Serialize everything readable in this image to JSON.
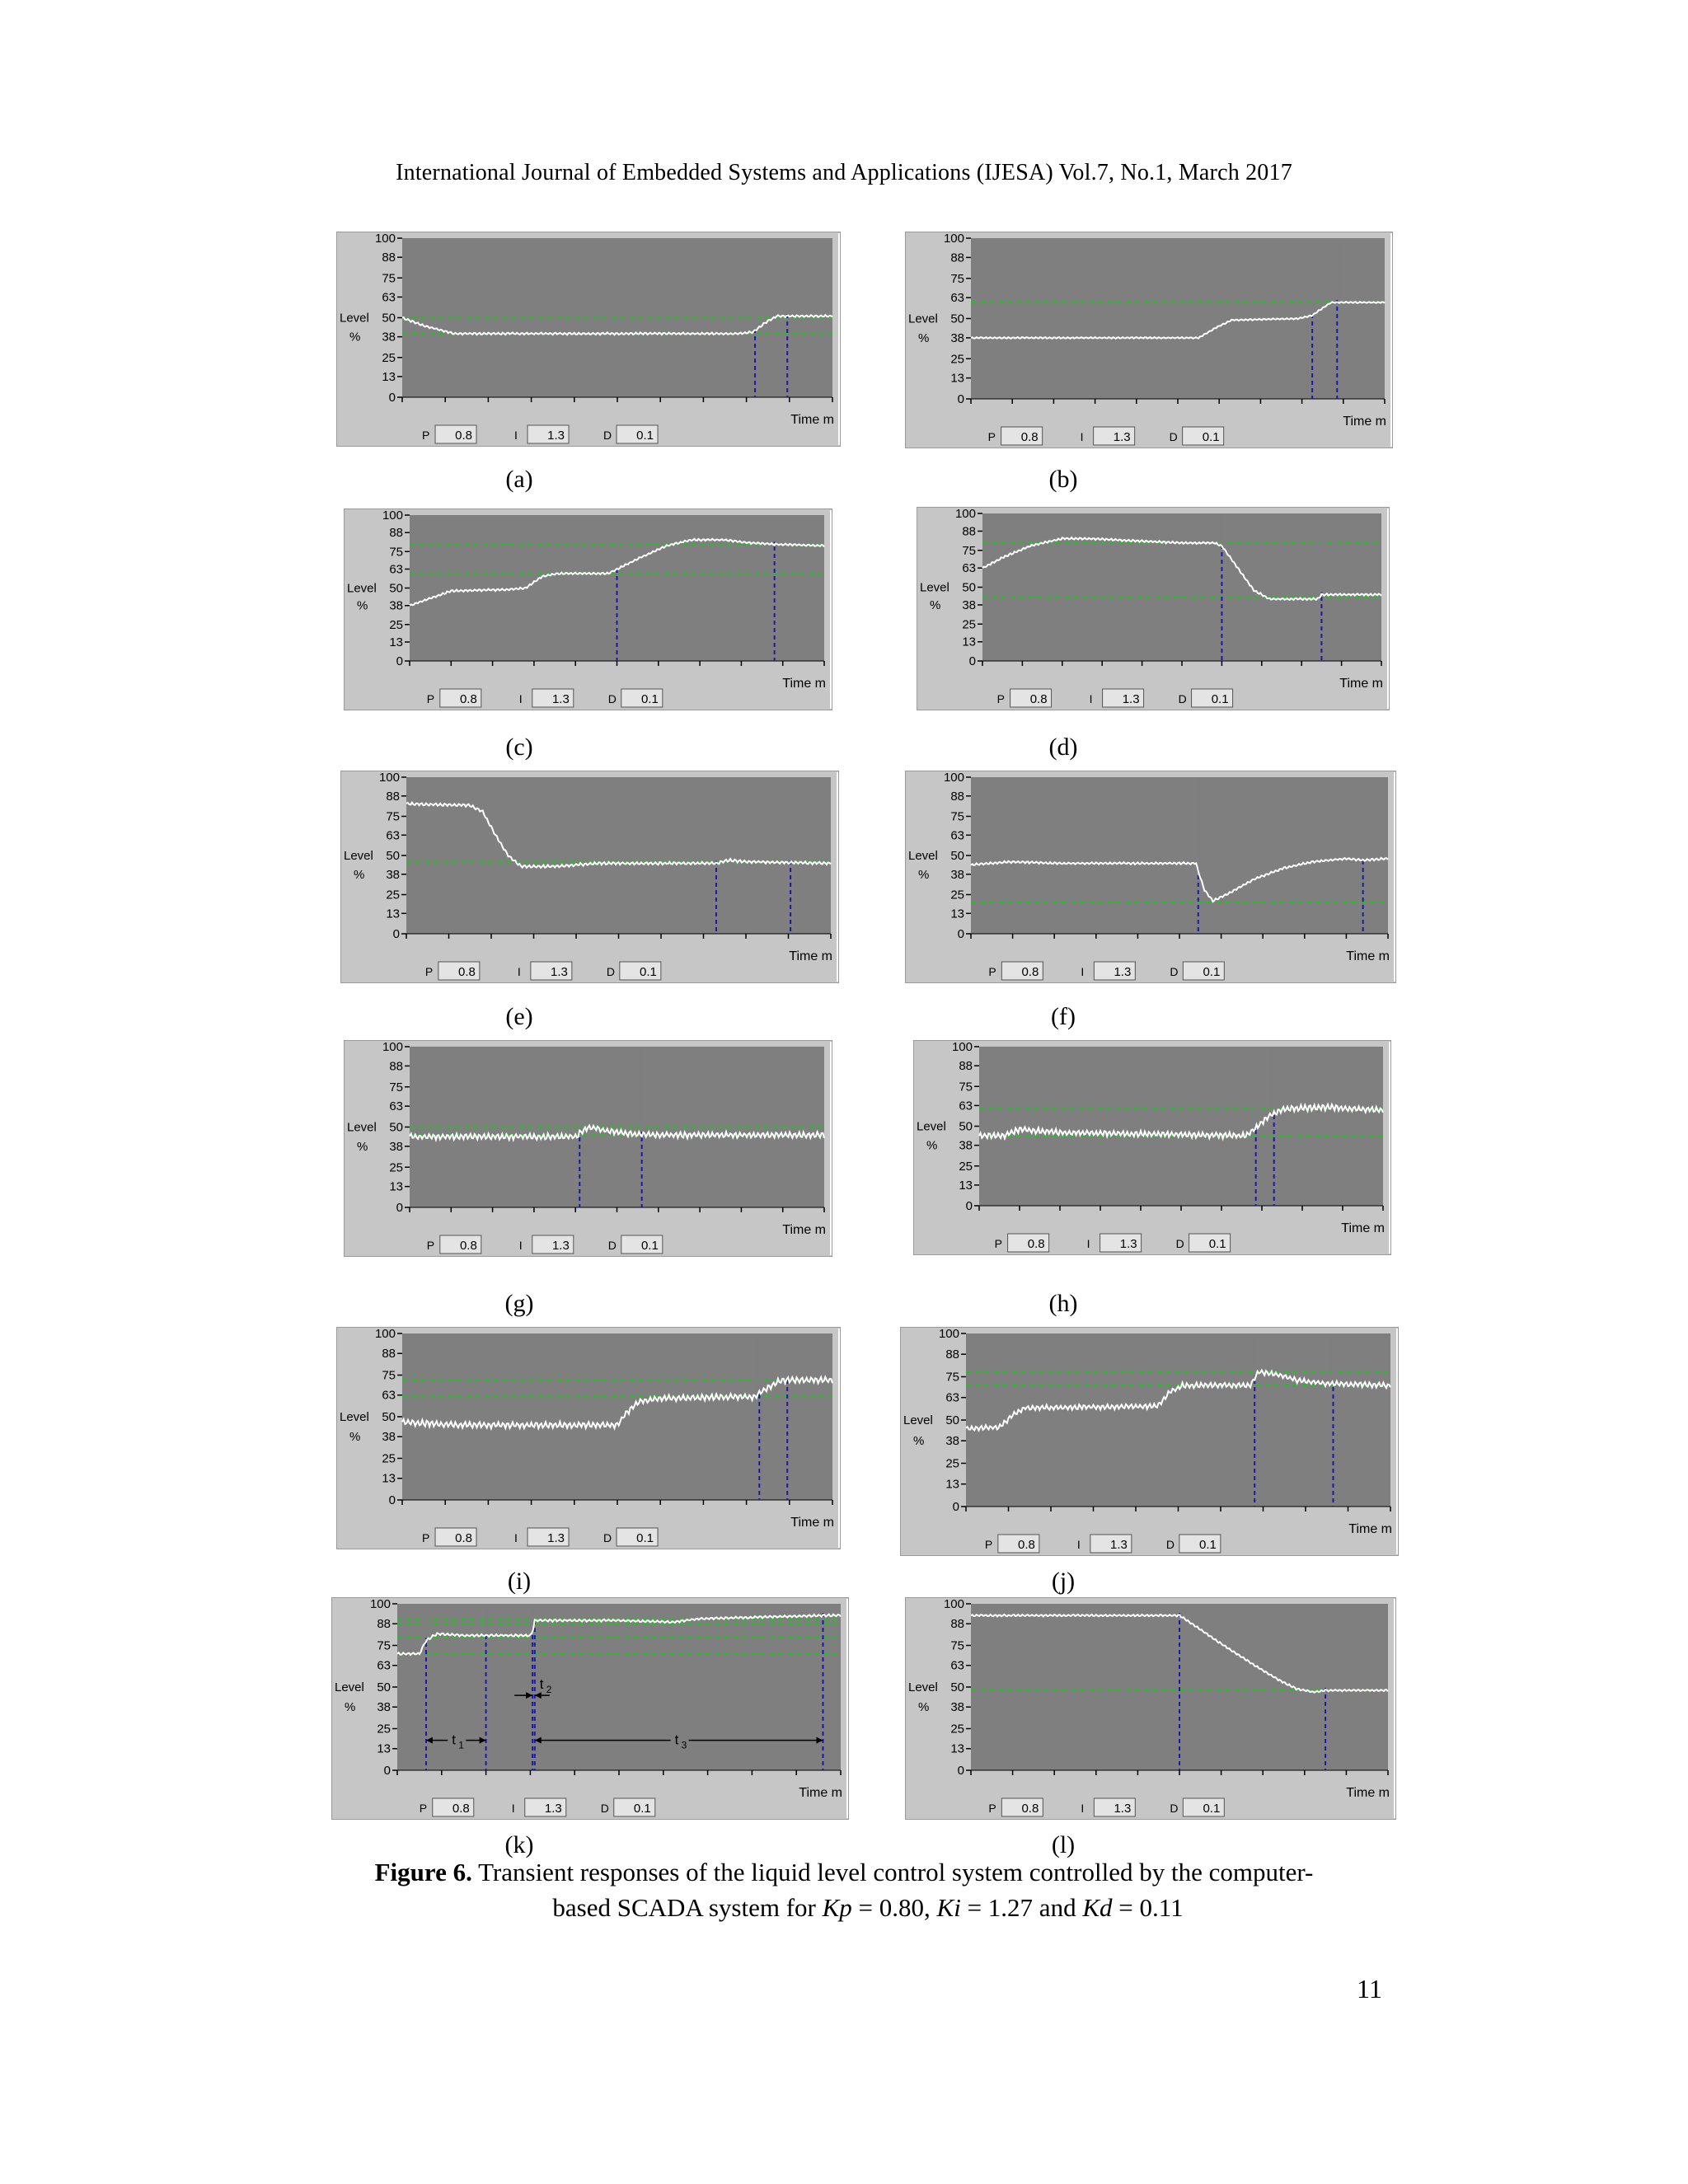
{
  "header": {
    "text": "International Journal of Embedded Systems and Applications (IJESA) Vol.7, No.1, March 2017"
  },
  "figure": {
    "caption_label": "Figure 6.",
    "caption_line1": "Transient responses of the liquid level control system controlled by the computer-",
    "caption_line2_prefix": "based SCADA system for",
    "kp_sym": "Kp",
    "kp_val": "= 0.80,",
    "ki_sym": "Ki",
    "ki_val": "= 1.27 and",
    "kd_sym": "Kd",
    "kd_val": "= 0.11"
  },
  "page_number": "11",
  "ui": {
    "y_title_line1": "Level",
    "y_title_line2": "%",
    "x_title": "Time m",
    "p_label": "P",
    "p_value": "0.8",
    "i_label": "I",
    "i_value": "1.3",
    "d_label": "D",
    "d_value": "0.1"
  },
  "colors": {
    "plot_bg": "#7f7f7f",
    "frame_bg": "#c6c6c6",
    "trace": "#ffffff",
    "setpoint": "#22c022",
    "marker": "#1a1aa8"
  },
  "chart_data": [
    {
      "label": "(a)",
      "type": "line",
      "ylim": [
        0,
        100
      ],
      "y_ticks": [
        0,
        13,
        25,
        38,
        50,
        63,
        75,
        88,
        100
      ],
      "setpoints": [
        50,
        40
      ],
      "markers_x": [
        0.82,
        0.895
      ],
      "series": [
        {
          "values": [
            [
              0,
              50
            ],
            [
              0.05,
              45
            ],
            [
              0.12,
              40
            ],
            [
              0.78,
              40
            ],
            [
              0.815,
              41
            ],
            [
              0.845,
              47
            ],
            [
              0.87,
              51
            ],
            [
              1,
              51
            ]
          ],
          "noise": 0.6
        }
      ]
    },
    {
      "label": "(b)",
      "type": "line",
      "ylim": [
        0,
        100
      ],
      "y_ticks": [
        0,
        13,
        25,
        38,
        50,
        63,
        75,
        88,
        100
      ],
      "setpoints": [
        60
      ],
      "markers_x": [
        0.825,
        0.885
      ],
      "series": [
        {
          "values": [
            [
              0,
              38
            ],
            [
              0.55,
              38
            ],
            [
              0.59,
              44
            ],
            [
              0.63,
              49
            ],
            [
              0.79,
              50
            ],
            [
              0.825,
              52
            ],
            [
              0.87,
              60
            ],
            [
              1,
              60
            ]
          ],
          "noise": 0.4
        }
      ]
    },
    {
      "label": "(c)",
      "type": "line",
      "ylim": [
        0,
        100
      ],
      "y_ticks": [
        0,
        13,
        25,
        38,
        50,
        63,
        75,
        88,
        100
      ],
      "setpoints": [
        80,
        60
      ],
      "markers_x": [
        0.5,
        0.88
      ],
      "series": [
        {
          "values": [
            [
              0,
              38
            ],
            [
              0.04,
              42
            ],
            [
              0.1,
              48
            ],
            [
              0.24,
              49
            ],
            [
              0.28,
              50
            ],
            [
              0.32,
              58
            ],
            [
              0.36,
              60
            ],
            [
              0.48,
              60
            ],
            [
              0.55,
              70
            ],
            [
              0.62,
              79
            ],
            [
              0.68,
              83
            ],
            [
              0.76,
              83
            ],
            [
              0.82,
              81
            ],
            [
              0.88,
              80
            ],
            [
              1,
              79
            ]
          ],
          "noise": 0.6
        }
      ]
    },
    {
      "label": "(d)",
      "type": "line",
      "ylim": [
        0,
        100
      ],
      "y_ticks": [
        0,
        13,
        25,
        38,
        50,
        63,
        75,
        88,
        100
      ],
      "setpoints": [
        80,
        43
      ],
      "markers_x": [
        0.6,
        0.85
      ],
      "series": [
        {
          "values": [
            [
              0,
              63
            ],
            [
              0.05,
              70
            ],
            [
              0.12,
              78
            ],
            [
              0.2,
              83
            ],
            [
              0.26,
              83
            ],
            [
              0.5,
              80
            ],
            [
              0.58,
              80
            ],
            [
              0.6,
              78
            ],
            [
              0.64,
              63
            ],
            [
              0.68,
              48
            ],
            [
              0.72,
              42
            ],
            [
              0.84,
              42
            ],
            [
              0.85,
              45
            ],
            [
              1,
              45
            ]
          ],
          "noise": 0.6
        }
      ]
    },
    {
      "label": "(e)",
      "type": "line",
      "ylim": [
        0,
        100
      ],
      "y_ticks": [
        0,
        13,
        25,
        38,
        50,
        63,
        75,
        88,
        100
      ],
      "setpoints": [
        46
      ],
      "markers_x": [
        0.73,
        0.905
      ],
      "series": [
        {
          "values": [
            [
              0,
              83
            ],
            [
              0.15,
              82
            ],
            [
              0.18,
              78
            ],
            [
              0.21,
              63
            ],
            [
              0.24,
              50
            ],
            [
              0.27,
              43
            ],
            [
              0.35,
              43
            ],
            [
              0.45,
              45
            ],
            [
              0.6,
              45
            ],
            [
              0.73,
              45
            ],
            [
              0.76,
              47
            ],
            [
              0.8,
              46
            ],
            [
              1,
              45
            ]
          ],
          "noise": 0.8
        }
      ]
    },
    {
      "label": "(f)",
      "type": "line",
      "ylim": [
        0,
        100
      ],
      "y_ticks": [
        0,
        13,
        25,
        38,
        50,
        63,
        75,
        88,
        100
      ],
      "setpoints": [
        20
      ],
      "markers_x": [
        0.545,
        0.94
      ],
      "series": [
        {
          "values": [
            [
              0,
              44
            ],
            [
              0.1,
              46
            ],
            [
              0.2,
              45
            ],
            [
              0.54,
              45
            ],
            [
              0.545,
              40
            ],
            [
              0.56,
              28
            ],
            [
              0.58,
              21
            ],
            [
              0.62,
              26
            ],
            [
              0.68,
              35
            ],
            [
              0.75,
              42
            ],
            [
              0.82,
              46
            ],
            [
              0.9,
              48
            ],
            [
              0.94,
              47
            ],
            [
              1,
              48
            ]
          ],
          "noise": 0.6
        }
      ]
    },
    {
      "label": "(g)",
      "type": "line",
      "ylim": [
        0,
        100
      ],
      "y_ticks": [
        0,
        13,
        25,
        38,
        50,
        63,
        75,
        88,
        100
      ],
      "setpoints": [
        50,
        45
      ],
      "markers_x": [
        0.41,
        0.56
      ],
      "series": [
        {
          "values": [
            [
              0,
              44
            ],
            [
              0.4,
              44
            ],
            [
              0.43,
              50
            ],
            [
              0.47,
              48
            ],
            [
              0.52,
              46
            ],
            [
              0.6,
              45
            ],
            [
              1,
              45
            ]
          ],
          "noise": 1.6
        }
      ]
    },
    {
      "label": "(h)",
      "type": "line",
      "ylim": [
        0,
        100
      ],
      "y_ticks": [
        0,
        13,
        25,
        38,
        50,
        63,
        75,
        88,
        100
      ],
      "setpoints": [
        61,
        44
      ],
      "markers_x": [
        0.685,
        0.73
      ],
      "series": [
        {
          "values": [
            [
              0,
              44
            ],
            [
              0.06,
              44
            ],
            [
              0.1,
              48
            ],
            [
              0.2,
              46
            ],
            [
              0.66,
              44
            ],
            [
              0.69,
              50
            ],
            [
              0.72,
              57
            ],
            [
              0.76,
              61
            ],
            [
              0.85,
              62
            ],
            [
              1,
              60
            ]
          ],
          "noise": 1.6
        }
      ]
    },
    {
      "label": "(i)",
      "type": "line",
      "ylim": [
        0,
        100
      ],
      "y_ticks": [
        0,
        13,
        25,
        38,
        50,
        63,
        75,
        88,
        100
      ],
      "setpoints": [
        72,
        62
      ],
      "markers_x": [
        0.83,
        0.895
      ],
      "series": [
        {
          "values": [
            [
              0,
              47
            ],
            [
              0.12,
              45
            ],
            [
              0.5,
              45
            ],
            [
              0.52,
              52
            ],
            [
              0.55,
              59
            ],
            [
              0.6,
              61
            ],
            [
              0.82,
              62
            ],
            [
              0.84,
              66
            ],
            [
              0.88,
              72
            ],
            [
              1,
              72
            ]
          ],
          "noise": 1.6
        }
      ]
    },
    {
      "label": "(j)",
      "type": "line",
      "ylim": [
        0,
        100
      ],
      "y_ticks": [
        0,
        13,
        25,
        38,
        50,
        63,
        75,
        88,
        100
      ],
      "setpoints": [
        78,
        70
      ],
      "markers_x": [
        0.68,
        0.865
      ],
      "series": [
        {
          "values": [
            [
              0,
              45
            ],
            [
              0.08,
              46
            ],
            [
              0.11,
              53
            ],
            [
              0.14,
              57
            ],
            [
              0.45,
              58
            ],
            [
              0.48,
              66
            ],
            [
              0.51,
              70
            ],
            [
              0.67,
              70
            ],
            [
              0.69,
              78
            ],
            [
              0.74,
              76
            ],
            [
              0.78,
              73
            ],
            [
              0.85,
              71
            ],
            [
              1,
              70
            ]
          ],
          "noise": 1.3
        }
      ]
    },
    {
      "label": "(k)",
      "type": "line",
      "ylim": [
        0,
        100
      ],
      "y_ticks": [
        0,
        13,
        25,
        38,
        50,
        63,
        75,
        88,
        100
      ],
      "setpoints": [
        91,
        88,
        80,
        70
      ],
      "markers_x": [
        0.065,
        0.2,
        0.305,
        0.31,
        0.96
      ],
      "annotations": {
        "t1": [
          0.065,
          0.2
        ],
        "t2": [
          0.305,
          0.31
        ],
        "t3": [
          0.31,
          0.96
        ]
      },
      "annotation_labels": {
        "t1_main": "t",
        "t1_sub": "1",
        "t2_main": "t",
        "t2_sub": "2",
        "t3_main": "t",
        "t3_sub": "3"
      },
      "series": [
        {
          "values": [
            [
              0,
              70
            ],
            [
              0.05,
              70
            ],
            [
              0.065,
              78
            ],
            [
              0.09,
              82
            ],
            [
              0.15,
              81
            ],
            [
              0.3,
              81
            ],
            [
              0.305,
              83
            ],
            [
              0.31,
              90
            ],
            [
              0.5,
              90
            ],
            [
              0.62,
              89
            ],
            [
              0.68,
              91
            ],
            [
              0.96,
              93
            ],
            [
              1,
              93
            ]
          ],
          "noise": 0.6
        }
      ]
    },
    {
      "label": "(l)",
      "type": "line",
      "ylim": [
        0,
        100
      ],
      "y_ticks": [
        0,
        13,
        25,
        38,
        50,
        63,
        75,
        88,
        100
      ],
      "setpoints": [
        48
      ],
      "markers_x": [
        0.5,
        0.85
      ],
      "series": [
        {
          "values": [
            [
              0,
              93
            ],
            [
              0.5,
              93
            ],
            [
              0.53,
              88
            ],
            [
              0.6,
              76
            ],
            [
              0.68,
              63
            ],
            [
              0.74,
              54
            ],
            [
              0.78,
              49
            ],
            [
              0.82,
              47
            ],
            [
              0.85,
              48
            ],
            [
              1,
              48
            ]
          ],
          "noise": 0.5
        }
      ]
    }
  ]
}
